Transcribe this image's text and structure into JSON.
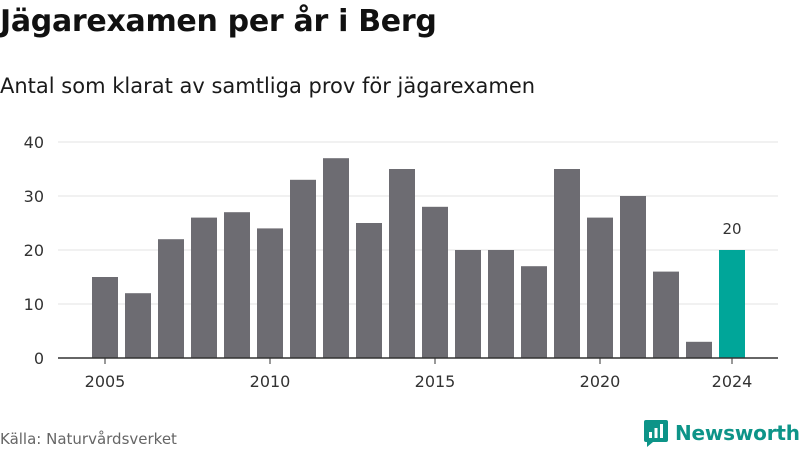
{
  "title": "Jägarexamen per år i Berg",
  "subtitle": "Antal som klarat av samtliga prov för jägarexamen",
  "source": "Källa: Naturvårdsverket",
  "brand": {
    "name": "Newsworthy",
    "icon": "newsworthy-logo-icon",
    "color": "#0d9488"
  },
  "colors": {
    "bar": "#6d6c72",
    "highlight": "#00a699",
    "grid": "#e3e3e3",
    "axis": "#333333"
  },
  "chart_data": {
    "type": "bar",
    "title": "",
    "xlabel": "",
    "ylabel": "",
    "x": [
      2005,
      2006,
      2007,
      2008,
      2009,
      2010,
      2011,
      2012,
      2013,
      2014,
      2015,
      2016,
      2017,
      2018,
      2019,
      2020,
      2021,
      2022,
      2023,
      2024
    ],
    "values": [
      15,
      12,
      22,
      26,
      27,
      24,
      33,
      37,
      25,
      35,
      28,
      20,
      20,
      17,
      35,
      26,
      30,
      16,
      3,
      20
    ],
    "ylim": [
      0,
      40
    ],
    "yticks": [
      0,
      10,
      20,
      30,
      40
    ],
    "xticks": [
      2005,
      2010,
      2015,
      2020,
      2024
    ],
    "highlight": {
      "x": 2024,
      "label": "20"
    },
    "grid": true,
    "legend": "none"
  }
}
